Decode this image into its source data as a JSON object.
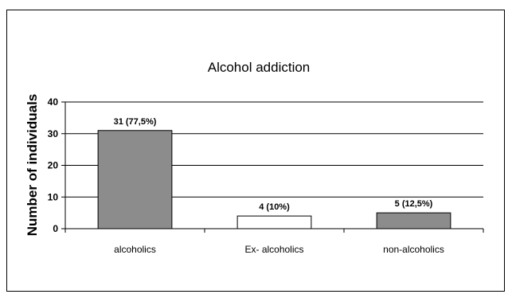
{
  "chart_data": {
    "type": "bar",
    "title": "Alcohol addiction",
    "xlabel": "",
    "ylabel": "Number of individuals",
    "categories": [
      "alcoholics",
      "Ex- alcoholics",
      "non-alcoholics"
    ],
    "values": [
      31,
      4,
      5
    ],
    "data_labels": [
      "31 (77,5%)",
      "4 (10%)",
      "5 (12,5%)"
    ],
    "bar_colors": [
      "#8c8c8c",
      "#ffffff",
      "#8c8c8c"
    ],
    "ylim": [
      0,
      40
    ],
    "yticks": [
      0,
      10,
      20,
      30,
      40
    ],
    "grid": true,
    "legend": "none"
  }
}
